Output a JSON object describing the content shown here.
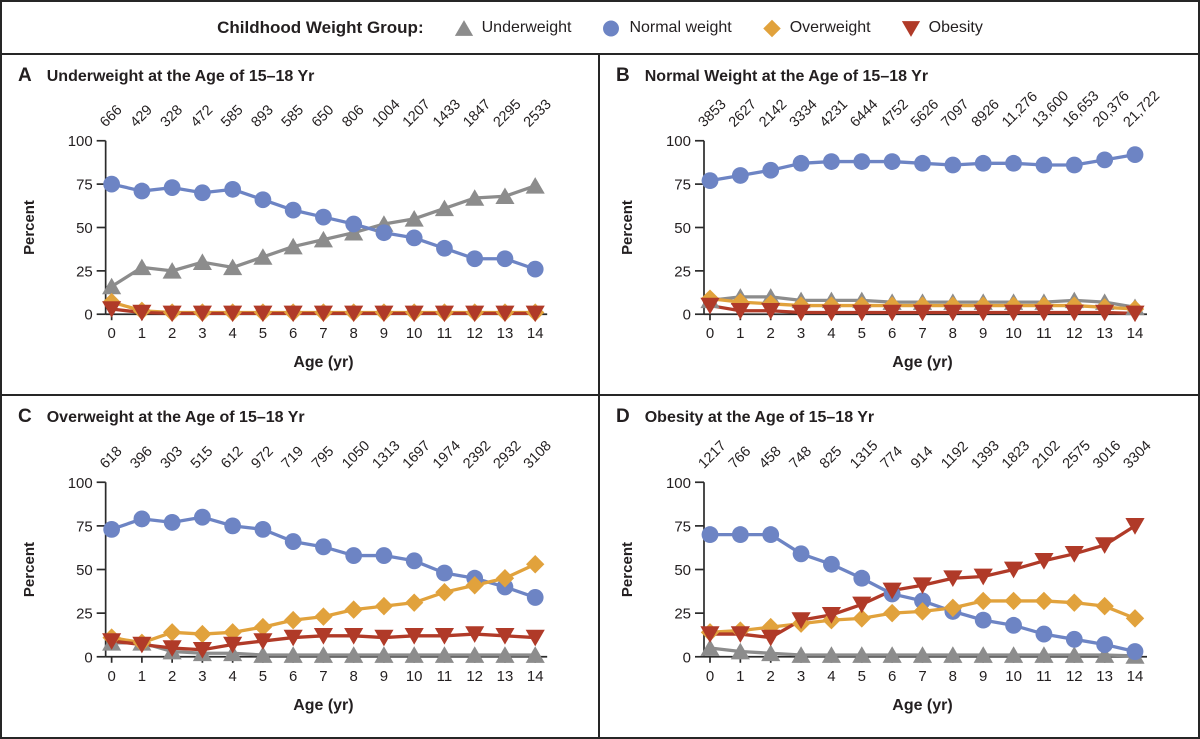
{
  "figure": {
    "legend": {
      "title": "Childhood Weight Group:",
      "items": [
        {
          "label": "Underweight",
          "marker": "triangle-up",
          "color": "#8c8c8c"
        },
        {
          "label": "Normal weight",
          "marker": "circle",
          "color": "#6d84c4"
        },
        {
          "label": "Overweight",
          "marker": "diamond",
          "color": "#e1a23c"
        },
        {
          "label": "Obesity",
          "marker": "triangle-down",
          "color": "#b03a28"
        }
      ]
    },
    "colors": {
      "underweight": "#8c8c8c",
      "normal_weight": "#6d84c4",
      "overweight": "#e1a23c",
      "obesity": "#b03a28",
      "text": "#231f20",
      "axis": "#2b2b2b",
      "border": "#262626"
    }
  },
  "chart_data": [
    {
      "type": "line",
      "panel_letter": "A",
      "title": "Underweight at the Age of 15–18 Yr",
      "xlabel": "Age (yr)",
      "ylabel": "Percent",
      "x": [
        0,
        1,
        2,
        3,
        4,
        5,
        6,
        7,
        8,
        9,
        10,
        11,
        12,
        13,
        14
      ],
      "ylim": [
        0,
        100
      ],
      "yticks": [
        0,
        25,
        50,
        75,
        100
      ],
      "grid": false,
      "sample_sizes": [
        "666",
        "429",
        "328",
        "472",
        "585",
        "893",
        "585",
        "650",
        "806",
        "1004",
        "1207",
        "1433",
        "1847",
        "2295",
        "2533"
      ],
      "series": [
        {
          "name": "Underweight",
          "marker": "triangle-up",
          "color": "#8c8c8c",
          "values": [
            16,
            27,
            25,
            30,
            27,
            33,
            39,
            43,
            47,
            52,
            55,
            61,
            67,
            68,
            74
          ]
        },
        {
          "name": "Normal weight",
          "marker": "circle",
          "color": "#6d84c4",
          "values": [
            75,
            71,
            73,
            70,
            72,
            66,
            60,
            56,
            52,
            47,
            44,
            38,
            32,
            32,
            26
          ]
        },
        {
          "name": "Overweight",
          "marker": "diamond",
          "color": "#e1a23c",
          "values": [
            7,
            2,
            1,
            1,
            1,
            1,
            1,
            1,
            1,
            1,
            1,
            1,
            1,
            1,
            1
          ]
        },
        {
          "name": "Obesity",
          "marker": "triangle-down",
          "color": "#b03a28",
          "values": [
            3,
            1,
            0.5,
            0.5,
            0.5,
            0.5,
            0.5,
            0.5,
            0.5,
            0.5,
            0.5,
            0.5,
            0.5,
            0.5,
            0.5
          ]
        }
      ]
    },
    {
      "type": "line",
      "panel_letter": "B",
      "title": "Normal Weight at the Age of 15–18 Yr",
      "xlabel": "Age (yr)",
      "ylabel": "Percent",
      "x": [
        0,
        1,
        2,
        3,
        4,
        5,
        6,
        7,
        8,
        9,
        10,
        11,
        12,
        13,
        14
      ],
      "ylim": [
        0,
        100
      ],
      "yticks": [
        0,
        25,
        50,
        75,
        100
      ],
      "grid": false,
      "sample_sizes": [
        "3853",
        "2627",
        "2142",
        "3334",
        "4231",
        "6444",
        "4752",
        "5626",
        "7097",
        "8926",
        "11,276",
        "13,600",
        "16,653",
        "20,376",
        "21,722"
      ],
      "series": [
        {
          "name": "Underweight",
          "marker": "triangle-up",
          "color": "#8c8c8c",
          "values": [
            8,
            10,
            10,
            8,
            8,
            8,
            7,
            7,
            7,
            7,
            7,
            7,
            8,
            7,
            4
          ]
        },
        {
          "name": "Normal weight",
          "marker": "circle",
          "color": "#6d84c4",
          "values": [
            77,
            80,
            83,
            87,
            88,
            88,
            88,
            87,
            86,
            87,
            87,
            86,
            86,
            89,
            92
          ]
        },
        {
          "name": "Overweight",
          "marker": "diamond",
          "color": "#e1a23c",
          "values": [
            9,
            7,
            6,
            5,
            5,
            5,
            5,
            5,
            5,
            5,
            5,
            5,
            5,
            4,
            3
          ]
        },
        {
          "name": "Obesity",
          "marker": "triangle-down",
          "color": "#b03a28",
          "values": [
            5,
            2,
            2,
            1,
            1,
            1,
            1,
            1,
            1,
            1,
            1,
            1,
            1,
            1,
            0.5
          ]
        }
      ]
    },
    {
      "type": "line",
      "panel_letter": "C",
      "title": "Overweight at the Age of 15–18 Yr",
      "xlabel": "Age (yr)",
      "ylabel": "Percent",
      "x": [
        0,
        1,
        2,
        3,
        4,
        5,
        6,
        7,
        8,
        9,
        10,
        11,
        12,
        13,
        14
      ],
      "ylim": [
        0,
        100
      ],
      "yticks": [
        0,
        25,
        50,
        75,
        100
      ],
      "grid": false,
      "sample_sizes": [
        "618",
        "396",
        "303",
        "515",
        "612",
        "972",
        "719",
        "795",
        "1050",
        "1313",
        "1697",
        "1974",
        "2392",
        "2932",
        "3108"
      ],
      "series": [
        {
          "name": "Underweight",
          "marker": "triangle-up",
          "color": "#8c8c8c",
          "values": [
            8,
            8,
            3,
            2,
            2,
            1,
            1,
            1,
            1,
            1,
            1,
            1,
            1,
            1,
            1
          ]
        },
        {
          "name": "Normal weight",
          "marker": "circle",
          "color": "#6d84c4",
          "values": [
            73,
            79,
            77,
            80,
            75,
            73,
            66,
            63,
            58,
            58,
            55,
            48,
            45,
            40,
            34
          ]
        },
        {
          "name": "Overweight",
          "marker": "diamond",
          "color": "#e1a23c",
          "values": [
            11,
            8,
            14,
            13,
            14,
            17,
            21,
            23,
            27,
            29,
            31,
            37,
            41,
            45,
            53
          ]
        },
        {
          "name": "Obesity",
          "marker": "triangle-down",
          "color": "#b03a28",
          "values": [
            9,
            7,
            5,
            4,
            7,
            9,
            11,
            12,
            12,
            11,
            12,
            12,
            13,
            12,
            11
          ]
        }
      ]
    },
    {
      "type": "line",
      "panel_letter": "D",
      "title": "Obesity at the Age of 15–18 Yr",
      "xlabel": "Age (yr)",
      "ylabel": "Percent",
      "x": [
        0,
        1,
        2,
        3,
        4,
        5,
        6,
        7,
        8,
        9,
        10,
        11,
        12,
        13,
        14
      ],
      "ylim": [
        0,
        100
      ],
      "yticks": [
        0,
        25,
        50,
        75,
        100
      ],
      "grid": false,
      "sample_sizes": [
        "1217",
        "766",
        "458",
        "748",
        "825",
        "1315",
        "774",
        "914",
        "1192",
        "1393",
        "1823",
        "2102",
        "2575",
        "3016",
        "3304"
      ],
      "series": [
        {
          "name": "Underweight",
          "marker": "triangle-up",
          "color": "#8c8c8c",
          "values": [
            5,
            3,
            2,
            1,
            1,
            1,
            1,
            1,
            1,
            1,
            1,
            1,
            1,
            1,
            0.5
          ]
        },
        {
          "name": "Normal weight",
          "marker": "circle",
          "color": "#6d84c4",
          "values": [
            70,
            70,
            70,
            59,
            53,
            45,
            36,
            32,
            26,
            21,
            18,
            13,
            10,
            7,
            3
          ]
        },
        {
          "name": "Overweight",
          "marker": "diamond",
          "color": "#e1a23c",
          "values": [
            14,
            15,
            17,
            19,
            21,
            22,
            25,
            26,
            28,
            32,
            32,
            32,
            31,
            29,
            22
          ]
        },
        {
          "name": "Obesity",
          "marker": "triangle-down",
          "color": "#b03a28",
          "values": [
            13,
            13,
            11,
            21,
            24,
            30,
            38,
            41,
            45,
            46,
            50,
            55,
            59,
            64,
            75
          ]
        }
      ]
    }
  ]
}
